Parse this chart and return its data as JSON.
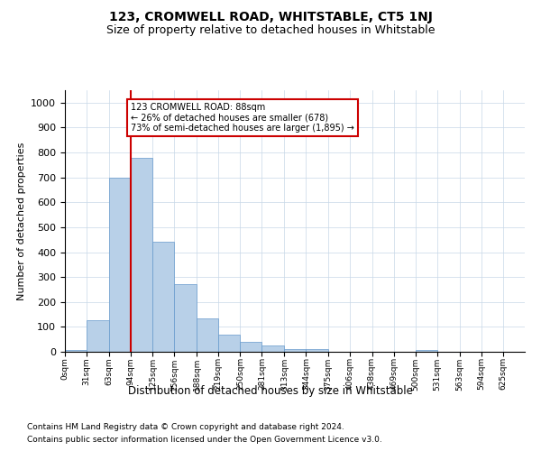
{
  "title": "123, CROMWELL ROAD, WHITSTABLE, CT5 1NJ",
  "subtitle": "Size of property relative to detached houses in Whitstable",
  "xlabel": "Distribution of detached houses by size in Whitstable",
  "ylabel": "Number of detached properties",
  "bar_color": "#b8d0e8",
  "bar_edge_color": "#6699cc",
  "background_color": "#ffffff",
  "grid_color": "#c8d8e8",
  "annotation_text": "123 CROMWELL ROAD: 88sqm\n← 26% of detached houses are smaller (678)\n73% of semi-detached houses are larger (1,895) →",
  "vline_x": 94,
  "vline_color": "#cc0000",
  "categories": [
    "0sqm",
    "31sqm",
    "63sqm",
    "94sqm",
    "125sqm",
    "156sqm",
    "188sqm",
    "219sqm",
    "250sqm",
    "281sqm",
    "313sqm",
    "344sqm",
    "375sqm",
    "406sqm",
    "438sqm",
    "469sqm",
    "500sqm",
    "531sqm",
    "563sqm",
    "594sqm",
    "625sqm"
  ],
  "bin_edges": [
    0,
    31,
    63,
    94,
    125,
    156,
    188,
    219,
    250,
    281,
    313,
    344,
    375,
    406,
    438,
    469,
    500,
    531,
    563,
    594,
    625,
    656
  ],
  "values": [
    7,
    125,
    700,
    780,
    440,
    270,
    135,
    70,
    40,
    25,
    12,
    10,
    0,
    0,
    0,
    0,
    9,
    0,
    0,
    0,
    0
  ],
  "ylim": [
    0,
    1050
  ],
  "yticks": [
    0,
    100,
    200,
    300,
    400,
    500,
    600,
    700,
    800,
    900,
    1000
  ],
  "footnote1": "Contains HM Land Registry data © Crown copyright and database right 2024.",
  "footnote2": "Contains public sector information licensed under the Open Government Licence v3.0."
}
